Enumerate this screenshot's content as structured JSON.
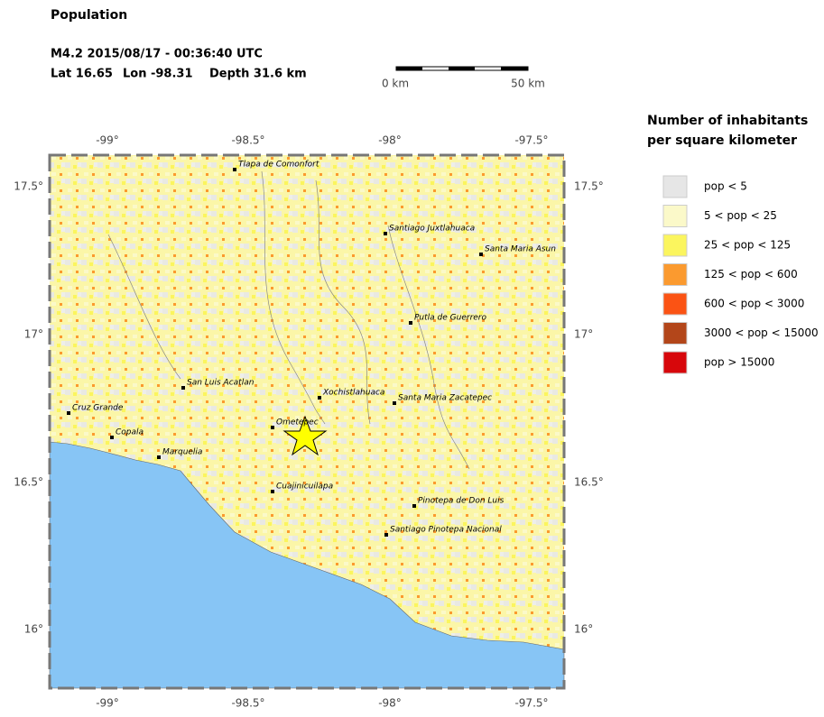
{
  "header": {
    "title": "Population",
    "event": "M4.2  2015/08/17 - 00:36:40 UTC",
    "lat": "Lat 16.65",
    "lon": "Lon -98.31",
    "depth": "Depth  31.6 km"
  },
  "scale_bar": {
    "start": "0 km",
    "end": "50 km"
  },
  "map": {
    "lon_labels": [
      "-99°",
      "-98.5°",
      "-98°",
      "-97.5°"
    ],
    "lat_labels": [
      "17.5°",
      "17°",
      "16.5°",
      "16°"
    ],
    "cities": [
      "Tlapa de Comonfort",
      "Santiago Juxtlahuaca",
      "Santa Maria Asun",
      "Putla de Guerrero",
      "San Luis Acatlan",
      "Xochistlahuaca",
      "Santa Maria Zacatepec",
      "Cruz Grande",
      "Copala",
      "Ometepec",
      "Marquelia",
      "Cuajinicuilapa",
      "Pinotepa de Don Luis",
      "Santiago Pinotepa Nacional"
    ]
  },
  "legend": {
    "title": [
      "Number of inhabitants",
      "per square kilometer"
    ],
    "entries": [
      {
        "label": "pop < 5",
        "color": "#e6e6e6"
      },
      {
        "label": "5 < pop < 25",
        "color": "#fbf9c9"
      },
      {
        "label": "25 < pop < 125",
        "color": "#fbf55e"
      },
      {
        "label": "125 < pop < 600",
        "color": "#fb9a2f"
      },
      {
        "label": "600 < pop < 3000",
        "color": "#fb5314"
      },
      {
        "label": "3000 < pop < 15000",
        "color": "#b3461a"
      },
      {
        "label": "pop > 15000",
        "color": "#d7070b"
      }
    ]
  }
}
